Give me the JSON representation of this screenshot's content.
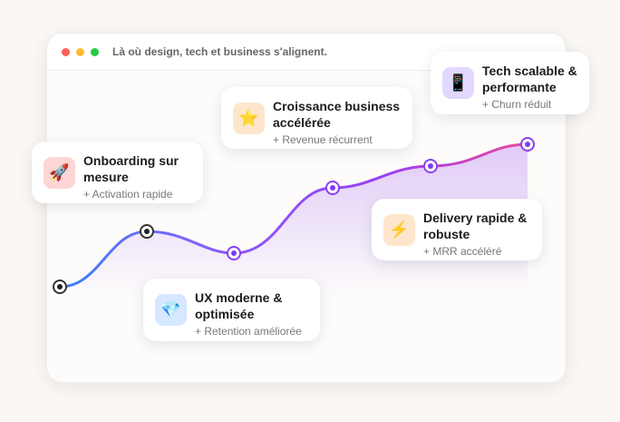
{
  "window": {
    "title": "Là où design, tech et business s'alignent.",
    "controls": [
      "#ff5f57",
      "#febc2e",
      "#28c840"
    ]
  },
  "curve": {
    "colors": {
      "start": "#3b82f6",
      "mid": "#8b3ff0",
      "end": "#ec4899",
      "fill": "#c9a5f5"
    }
  },
  "cards": [
    {
      "title": "Onboarding sur mesure",
      "subtitle": "+ Activation rapide",
      "icon": "rocket-icon",
      "glyph": "🚀",
      "bg": "#fdd5d5"
    },
    {
      "title": "UX moderne & optimisée",
      "subtitle": "+ Retention améliorée",
      "icon": "gem-icon",
      "glyph": "💎",
      "bg": "#d6e8ff"
    },
    {
      "title": "Croissance business accélérée",
      "subtitle": "+ Revenue récurrent",
      "icon": "star-icon",
      "glyph": "⭐",
      "bg": "#fde6cc"
    },
    {
      "title": "Delivery rapide & robuste",
      "subtitle": "+ MRR accéléré",
      "icon": "lightning-icon",
      "glyph": "⚡",
      "bg": "#fde6cc"
    },
    {
      "title": "Tech scalable & performante",
      "subtitle": "+ Churn réduit",
      "icon": "phone-icon",
      "glyph": "📱",
      "bg": "#e2d8fd"
    }
  ]
}
